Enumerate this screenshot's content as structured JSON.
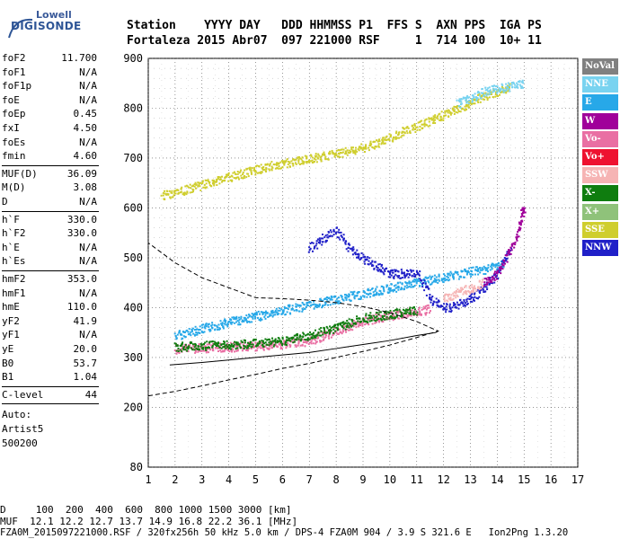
{
  "logo": {
    "brand_top": "Lowell",
    "brand_main": "DIGISONDE"
  },
  "header": {
    "columns": "Station    YYYY DAY   DDD HHMMSS P1  FFS S  AXN PPS  IGA PS",
    "values": "Fortaleza 2015 Abr07  097 221000 RSF     1  714 100  10+ 11"
  },
  "params_group1": [
    {
      "key": "foF2",
      "value": "11.700"
    },
    {
      "key": "foF1",
      "value": "N/A"
    },
    {
      "key": "foF1p",
      "value": "N/A"
    },
    {
      "key": "foE",
      "value": "N/A"
    },
    {
      "key": "foEp",
      "value": "0.45"
    },
    {
      "key": "fxI",
      "value": "4.50"
    },
    {
      "key": "foEs",
      "value": "N/A"
    },
    {
      "key": "fmin",
      "value": "4.60"
    }
  ],
  "params_group2": [
    {
      "key": "MUF(D)",
      "value": "36.09"
    },
    {
      "key": "M(D)",
      "value": "3.08"
    },
    {
      "key": "D",
      "value": "N/A"
    }
  ],
  "params_group3": [
    {
      "key": "h`F",
      "value": "330.0"
    },
    {
      "key": "h`F2",
      "value": "330.0"
    },
    {
      "key": "h`E",
      "value": "N/A"
    },
    {
      "key": "h`Es",
      "value": "N/A"
    }
  ],
  "params_group4": [
    {
      "key": "hmF2",
      "value": "353.0"
    },
    {
      "key": "hmF1",
      "value": "N/A"
    },
    {
      "key": "hmE",
      "value": "110.0"
    },
    {
      "key": "yF2",
      "value": "41.9"
    },
    {
      "key": "yF1",
      "value": "N/A"
    },
    {
      "key": "yE",
      "value": "20.0"
    },
    {
      "key": "B0",
      "value": "53.7"
    },
    {
      "key": "B1",
      "value": "1.04"
    }
  ],
  "clevel": {
    "key": "C-level",
    "value": "44"
  },
  "auto": [
    "Auto:",
    "Artist5",
    "500200"
  ],
  "legend": [
    {
      "label": "NoVal",
      "bg": "#808080",
      "fg": "#ffffff"
    },
    {
      "label": "NNE",
      "bg": "#79d3f0",
      "fg": "#ffffff"
    },
    {
      "label": "E",
      "bg": "#27a8e8",
      "fg": "#ffffff"
    },
    {
      "label": "W",
      "bg": "#a0009a",
      "fg": "#ffffff"
    },
    {
      "label": "Vo-",
      "bg": "#e96fa3",
      "fg": "#ffffff"
    },
    {
      "label": "Vo+",
      "bg": "#ee1230",
      "fg": "#ffffff"
    },
    {
      "label": "SSW",
      "bg": "#f6b4b4",
      "fg": "#ffffff"
    },
    {
      "label": "X-",
      "bg": "#0f7d0f",
      "fg": "#ffffff"
    },
    {
      "label": "X+",
      "bg": "#8fc27a",
      "fg": "#ffffff"
    },
    {
      "label": "SSE",
      "bg": "#cfce2e",
      "fg": "#ffffff"
    },
    {
      "label": "NNW",
      "bg": "#2020c8",
      "fg": "#ffffff"
    }
  ],
  "footer": {
    "dist_line": "D     100  200  400  600  800 1000 1500 3000 [km]",
    "muf_line": "MUF  12.1 12.2 12.7 13.7 14.9 16.8 22.2 36.1 [MHz]",
    "file_line": "FZA0M_2015097221000.RSF / 320fx256h 50 kHz 5.0 km / DPS-4 FZA0M 904 / 3.9 S 321.6 E   Ion2Png 1.3.20"
  },
  "chart_data": {
    "type": "scatter",
    "title": "",
    "xlabel": "",
    "ylabel": "",
    "x_ticks": [
      1,
      2,
      3,
      4,
      5,
      6,
      7,
      8,
      9,
      10,
      11,
      12,
      13,
      14,
      15,
      16,
      17
    ],
    "y_ticks": [
      80,
      200,
      300,
      400,
      500,
      600,
      700,
      800,
      900
    ],
    "xlim": [
      1,
      17
    ],
    "ylim": [
      80,
      900
    ],
    "grid": true,
    "legend_position": "right",
    "series": [
      {
        "name": "E",
        "color": "#27a8e8",
        "x": [
          2.0,
          4.0,
          6.0,
          8.0,
          10.0,
          12.0,
          13.5,
          14.3
        ],
        "y": [
          345,
          372,
          395,
          418,
          440,
          462,
          478,
          492
        ]
      },
      {
        "name": "Vo-",
        "color": "#e96fa3",
        "x": [
          2.0,
          3.0,
          4.0,
          5.0,
          6.0,
          7.0,
          8.0,
          9.0,
          10.0,
          10.8,
          11.5
        ],
        "y": [
          318,
          320,
          322,
          324,
          327,
          335,
          355,
          375,
          385,
          392,
          398
        ]
      },
      {
        "name": "X-",
        "color": "#0f7d0f",
        "x": [
          2.0,
          3.0,
          4.0,
          5.0,
          6.0,
          7.0,
          8.0,
          9.0,
          10.0,
          11.0
        ],
        "y": [
          322,
          325,
          327,
          330,
          334,
          345,
          362,
          380,
          388,
          395
        ]
      },
      {
        "name": "NNW",
        "color": "#2020c8",
        "x": [
          7.0,
          7.5,
          8.0,
          8.5,
          9.0,
          10.0,
          11.0,
          11.5,
          12.0,
          12.5,
          13.0,
          13.5,
          14.0,
          14.5
        ],
        "y": [
          520,
          540,
          555,
          520,
          500,
          468,
          472,
          420,
          400,
          405,
          420,
          440,
          470,
          520
        ]
      },
      {
        "name": "W",
        "color": "#a0009a",
        "x": [
          13.5,
          14.0,
          14.3,
          14.6,
          14.8,
          14.9,
          15.0
        ],
        "y": [
          450,
          470,
          500,
          530,
          560,
          590,
          600
        ]
      },
      {
        "name": "SSE",
        "color": "#cfce2e",
        "x": [
          1.5,
          2.5,
          3.5,
          4.5,
          5.5,
          6.5,
          7.5,
          8.5,
          9.5,
          10.5,
          11.5,
          12.5,
          13.5,
          14.5
        ],
        "y": [
          625,
          640,
          655,
          670,
          685,
          695,
          705,
          715,
          730,
          755,
          775,
          800,
          825,
          845
        ]
      },
      {
        "name": "NNE",
        "color": "#79d3f0",
        "x": [
          12.5,
          13.0,
          13.5,
          14.0,
          14.5,
          15.0
        ],
        "y": [
          810,
          820,
          835,
          840,
          845,
          850
        ]
      },
      {
        "name": "SSW",
        "color": "#f6b4b4",
        "x": [
          12.0,
          12.5,
          13.0,
          13.5
        ],
        "y": [
          420,
          430,
          440,
          450
        ]
      }
    ],
    "profile_solid": {
      "x": [
        1.8,
        3,
        4,
        5,
        6,
        7,
        8,
        9,
        10,
        11,
        11.7,
        11.8
      ],
      "y": [
        285,
        290,
        295,
        300,
        305,
        310,
        318,
        326,
        334,
        344,
        350,
        353
      ]
    },
    "profile_dashed": {
      "x": [
        1.0,
        2.0,
        3.0,
        4.0,
        5.0,
        6.0,
        7.0,
        8.0,
        9.0,
        10.0,
        11.0,
        11.8,
        11.0,
        10.0,
        9.0,
        8.0,
        7.0,
        6.0,
        5.0,
        4.0,
        3.0,
        2.0,
        1.0
      ],
      "y": [
        223,
        232,
        243,
        255,
        266,
        278,
        288,
        300,
        312,
        325,
        340,
        353,
        372,
        390,
        402,
        410,
        415,
        418,
        420,
        440,
        460,
        490,
        530
      ]
    }
  }
}
